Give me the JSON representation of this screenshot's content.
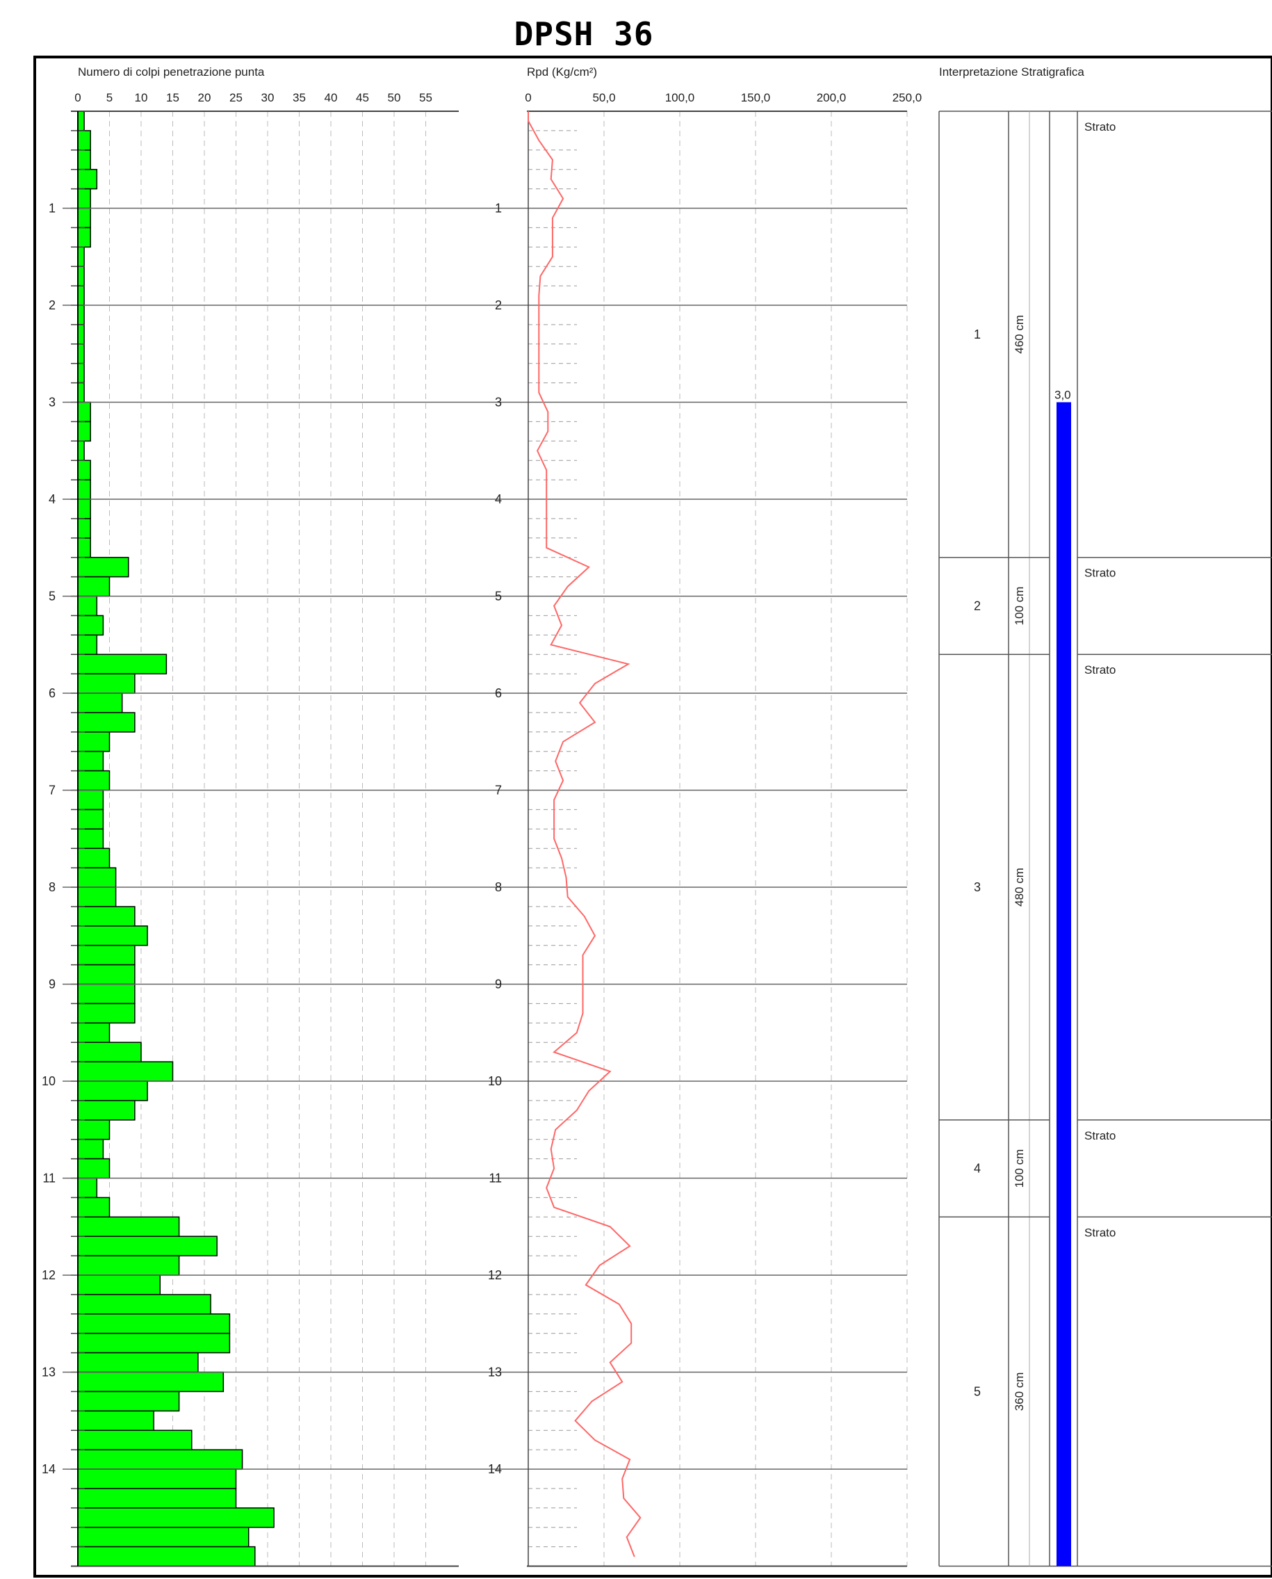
{
  "title": "DPSH 36",
  "chart_data": [
    {
      "type": "bar",
      "orientation": "horizontal",
      "title": "Numero di colpi penetrazione punta",
      "x_ticks": [
        "0",
        "5",
        "10",
        "15",
        "20",
        "25",
        "30",
        "35",
        "40",
        "45",
        "50",
        "55"
      ],
      "xlim": [
        0,
        55
      ],
      "y_ticks": [
        "1",
        "2",
        "3",
        "4",
        "5",
        "6",
        "7",
        "8",
        "9",
        "10",
        "11",
        "12",
        "13",
        "14"
      ],
      "depth_step": 0.2,
      "values": [
        1,
        2,
        2,
        3,
        2,
        2,
        2,
        1,
        1,
        1,
        1,
        1,
        1,
        1,
        1,
        2,
        2,
        1,
        2,
        2,
        2,
        2,
        2,
        8,
        5,
        3,
        4,
        3,
        14,
        9,
        7,
        9,
        5,
        4,
        5,
        4,
        4,
        4,
        5,
        6,
        6,
        9,
        11,
        9,
        9,
        9,
        9,
        5,
        10,
        15,
        11,
        9,
        5,
        4,
        5,
        3,
        5,
        16,
        22,
        16,
        13,
        21,
        24,
        24,
        19,
        23,
        16,
        12,
        18,
        26,
        25,
        25,
        31,
        27,
        28
      ],
      "bar_color": "#00ff00",
      "grid": true
    },
    {
      "type": "line",
      "title": "Rpd (Kg/cm²)",
      "x_ticks": [
        "0",
        "50,0",
        "100,0",
        "150,0",
        "200,0",
        "250,0"
      ],
      "xlim": [
        0,
        250
      ],
      "y_ticks": [
        "1",
        "2",
        "3",
        "4",
        "5",
        "6",
        "7",
        "8",
        "9",
        "10",
        "11",
        "12",
        "13",
        "14"
      ],
      "depth_step": 0.2,
      "values": [
        0,
        7,
        16,
        15,
        23,
        16,
        16,
        16,
        8,
        7,
        7,
        7,
        7,
        7,
        7,
        13,
        13,
        6,
        12,
        12,
        12,
        12,
        12,
        40,
        26,
        17,
        22,
        15,
        66,
        44,
        34,
        44,
        23,
        18,
        23,
        17,
        17,
        17,
        22,
        25,
        26,
        37,
        44,
        36,
        36,
        36,
        36,
        32,
        17,
        54,
        40,
        32,
        18,
        15,
        17,
        12,
        17,
        54,
        67,
        47,
        38,
        60,
        68,
        68,
        54,
        62,
        42,
        31,
        44,
        67,
        62,
        63,
        74,
        65,
        70
      ],
      "line_color": "#ff6666",
      "grid": true
    },
    {
      "type": "table",
      "title": "Interpretazione Stratigrafica",
      "strata": [
        {
          "number": "1",
          "thickness": "460 cm",
          "label": "Strato",
          "thickness_m": 4.6
        },
        {
          "number": "2",
          "thickness": "100 cm",
          "label": "Strato",
          "thickness_m": 1.0
        },
        {
          "number": "3",
          "thickness": "480 cm",
          "label": "Strato",
          "thickness_m": 4.8
        },
        {
          "number": "4",
          "thickness": "100 cm",
          "label": "Strato",
          "thickness_m": 1.0
        },
        {
          "number": "5",
          "thickness": "360 cm",
          "label": "Strato",
          "thickness_m": 3.6
        }
      ],
      "water_level": "3,0",
      "water_level_depth": 3.0,
      "water_color": "#0000ff"
    }
  ]
}
